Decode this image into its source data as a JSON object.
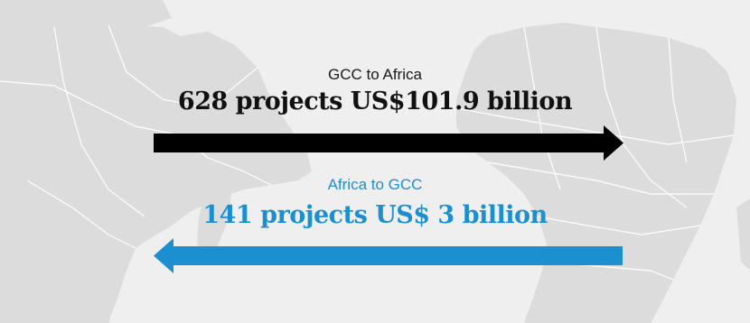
{
  "colors": {
    "background": "#efefef",
    "land": "#dcdcdc",
    "border_lines": "#ffffff",
    "outbound_arrow": "#000000",
    "inbound_accent": "#1b8fd0"
  },
  "outbound": {
    "label": "GCC to Africa",
    "projects": "628 projects",
    "value": "US$101.9 billion",
    "direction": "right"
  },
  "inbound": {
    "label": "Africa to GCC",
    "projects": "141 projects",
    "value": "US$ 3 billion",
    "direction": "left"
  }
}
